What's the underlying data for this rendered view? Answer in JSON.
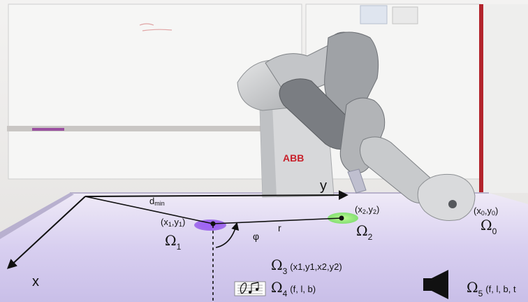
{
  "labels": {
    "robot_brand": "ABB",
    "axis_x": "x",
    "axis_y": "y",
    "d_min_main": "d",
    "d_min_sub": "min",
    "r": "r",
    "phi": "φ",
    "p1_a": "(x",
    "p1_s1": "1",
    "p1_b": ",y",
    "p1_s2": "1",
    "p1_c": ")",
    "p2_a": "(x",
    "p2_s1": "2",
    "p2_b": ",y",
    "p2_s2": "2",
    "p2_c": ")",
    "p0_a": "(x",
    "p0_s1": "0",
    "p0_b": ",y",
    "p0_s2": "0",
    "p0_c": ")",
    "omega_symbol": "Ω",
    "omega1_sub": "1",
    "omega2_sub": "2",
    "omega0_sub": "0",
    "omega3_sub": "3",
    "omega3_args": "(x1,y1,x2,y2)",
    "omega4_sub": "4",
    "omega4_args": "(f, l, b)",
    "omega5_sub": "5",
    "omega5_args": "(f, l, b, t"
  },
  "colors": {
    "target1": "#8a3cf0",
    "target2": "#7ef05a",
    "table": "#d9d2ef",
    "wall": "#ecebea",
    "robot_light": "#c9cbcd",
    "robot_dark": "#6e7176",
    "abb_red": "#c8202a"
  },
  "icons": {
    "music": "music-notes-icon",
    "speaker": "speaker-icon"
  }
}
